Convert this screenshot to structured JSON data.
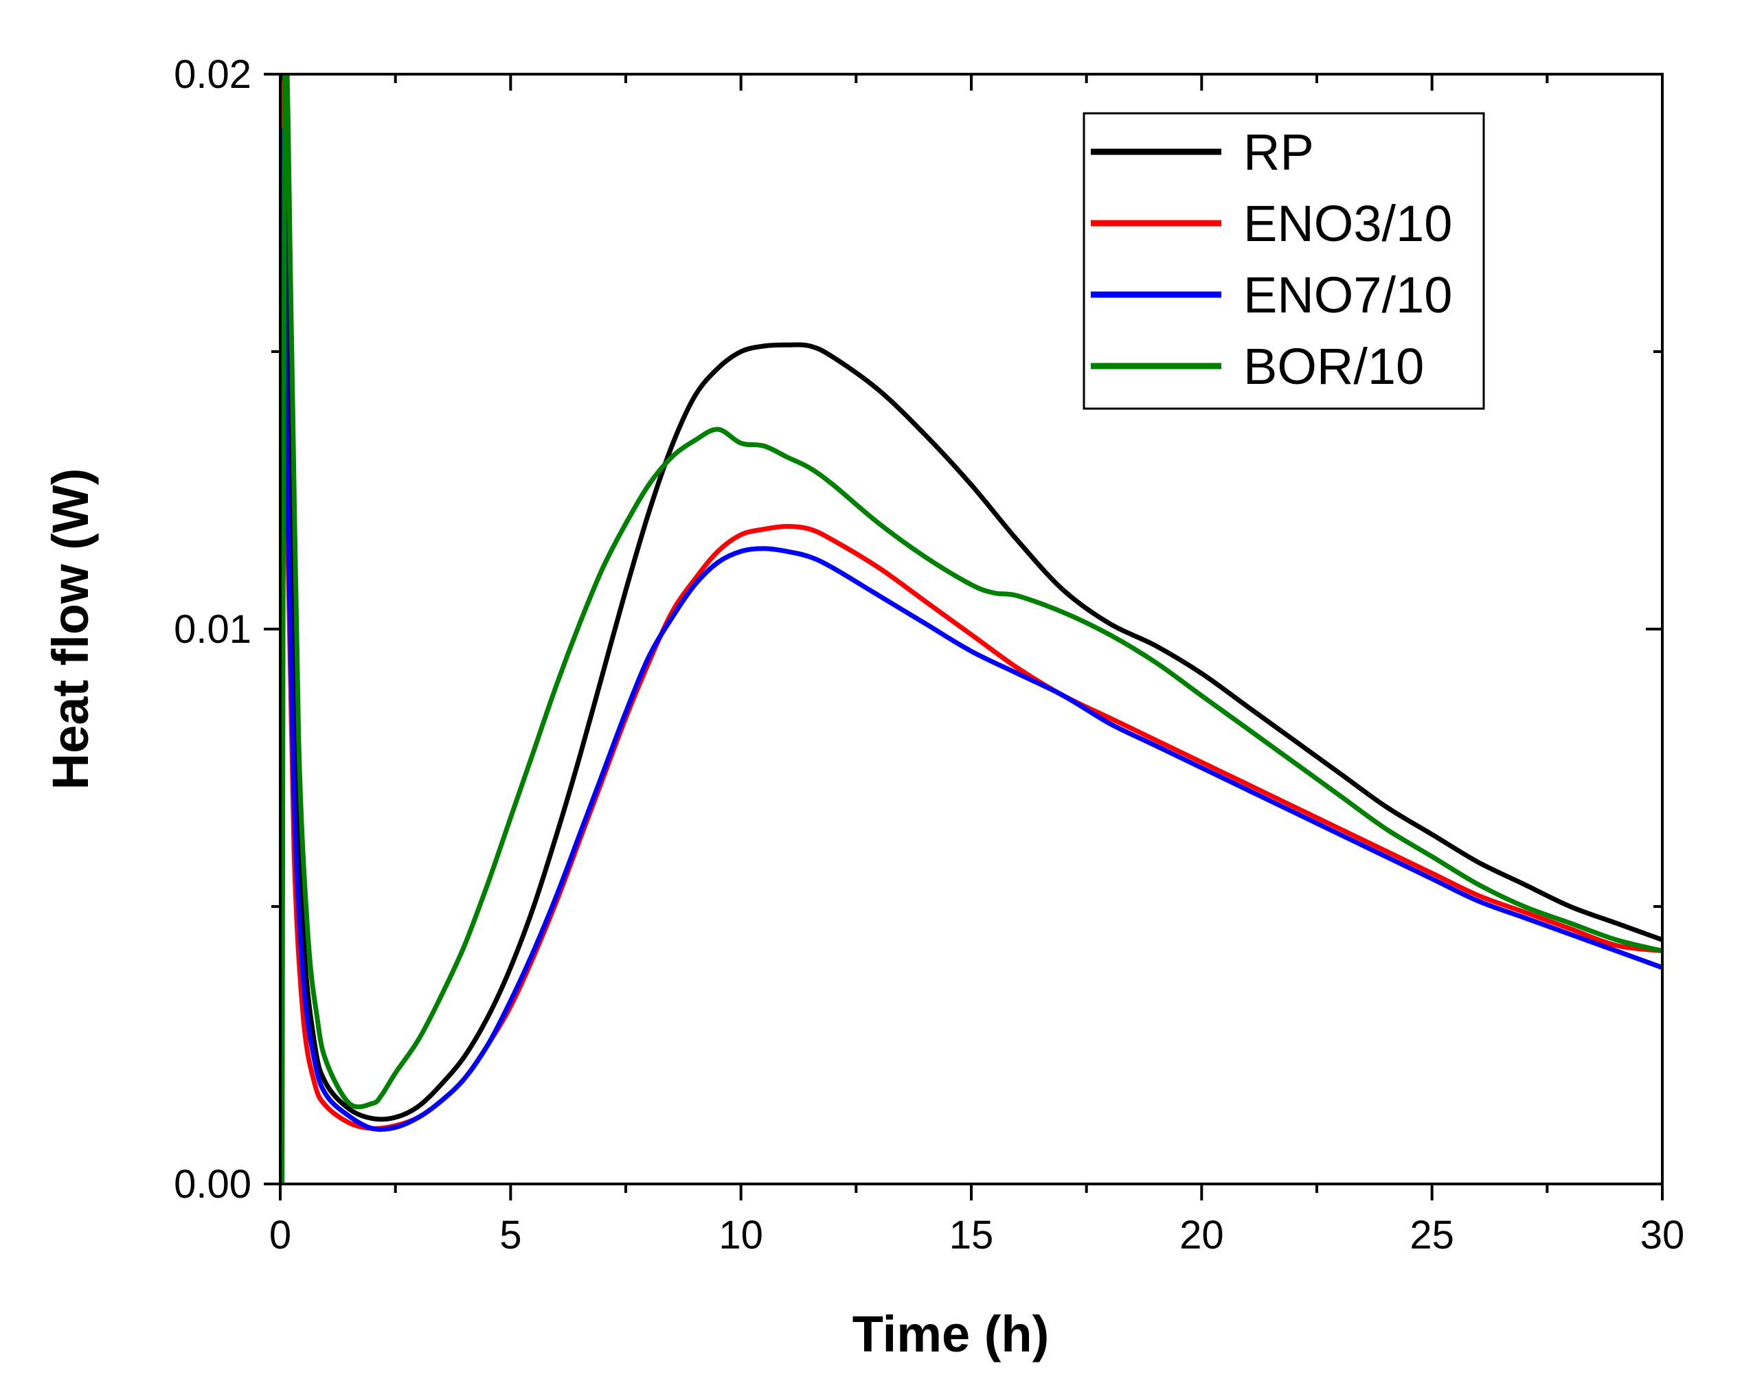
{
  "chart_data": {
    "type": "line",
    "title": "",
    "xlabel": "Time (h)",
    "ylabel": "Heat flow (W)",
    "xlim": [
      0,
      30
    ],
    "ylim": [
      0,
      0.02
    ],
    "x_ticks": [
      0,
      5,
      10,
      15,
      20,
      25,
      30
    ],
    "x_tick_labels": [
      "0",
      "5",
      "10",
      "15",
      "20",
      "25",
      "30"
    ],
    "y_ticks": [
      0,
      0.01,
      0.02
    ],
    "y_tick_labels": [
      "0.00",
      "0.01",
      "0.02"
    ],
    "x_minor_step": 2.5,
    "y_minor_step": 0.005,
    "grid": false,
    "legend_position": "top-right",
    "series": [
      {
        "name": "RP",
        "color": "#000000",
        "x": [
          0.05,
          0.15,
          0.3,
          0.5,
          0.75,
          1.0,
          1.5,
          2.0,
          2.5,
          3.0,
          3.5,
          4.0,
          4.5,
          5.0,
          5.5,
          6.0,
          6.5,
          7.0,
          7.5,
          8.0,
          8.5,
          9.0,
          9.5,
          10.0,
          10.5,
          11.0,
          11.5,
          12.0,
          13.0,
          14.0,
          15.0,
          16.0,
          17.0,
          18.0,
          19.0,
          20.0,
          21.0,
          22.0,
          23.0,
          24.0,
          25.0,
          26.0,
          27.0,
          28.0,
          29.0,
          30.0
        ],
        "values": [
          0.02,
          0.016,
          0.009,
          0.0045,
          0.0025,
          0.0018,
          0.00135,
          0.00118,
          0.0012,
          0.0014,
          0.0018,
          0.0023,
          0.003,
          0.0039,
          0.005,
          0.0063,
          0.0077,
          0.0092,
          0.0107,
          0.0121,
          0.0133,
          0.0142,
          0.0147,
          0.015,
          0.0151,
          0.01512,
          0.0151,
          0.0149,
          0.0143,
          0.0135,
          0.0126,
          0.0116,
          0.0107,
          0.0101,
          0.0097,
          0.0092,
          0.0086,
          0.008,
          0.0074,
          0.0068,
          0.0063,
          0.0058,
          0.0054,
          0.005,
          0.0047,
          0.0044
        ]
      },
      {
        "name": "ENO3/10",
        "color": "#ff0000",
        "x": [
          0.05,
          0.15,
          0.3,
          0.5,
          0.75,
          1.0,
          1.5,
          2.0,
          2.5,
          3.0,
          3.5,
          4.0,
          4.5,
          5.0,
          5.5,
          6.0,
          6.5,
          7.0,
          7.5,
          8.0,
          8.5,
          9.0,
          9.5,
          10.0,
          10.5,
          11.0,
          11.5,
          12.0,
          13.0,
          14.0,
          15.0,
          16.0,
          17.0,
          18.0,
          19.0,
          20.0,
          21.0,
          22.0,
          23.0,
          24.0,
          25.0,
          26.0,
          27.0,
          28.0,
          29.0,
          30.0
        ],
        "values": [
          0.0195,
          0.012,
          0.006,
          0.003,
          0.0018,
          0.0014,
          0.0011,
          0.001,
          0.00105,
          0.0012,
          0.0015,
          0.0019,
          0.0025,
          0.0032,
          0.0041,
          0.0051,
          0.0062,
          0.0073,
          0.0084,
          0.0094,
          0.0103,
          0.0109,
          0.0114,
          0.0117,
          0.0118,
          0.01185,
          0.0118,
          0.0116,
          0.0111,
          0.0105,
          0.0099,
          0.0093,
          0.0088,
          0.0084,
          0.008,
          0.0076,
          0.0072,
          0.0068,
          0.0064,
          0.006,
          0.0056,
          0.0052,
          0.0049,
          0.0046,
          0.0043,
          0.0042
        ]
      },
      {
        "name": "ENO7/10",
        "color": "#0000ff",
        "x": [
          0.05,
          0.15,
          0.3,
          0.5,
          0.75,
          1.0,
          1.5,
          2.0,
          2.5,
          3.0,
          3.5,
          4.0,
          4.5,
          5.0,
          5.5,
          6.0,
          6.5,
          7.0,
          7.5,
          8.0,
          8.5,
          9.0,
          9.5,
          10.0,
          10.5,
          11.0,
          11.5,
          12.0,
          13.0,
          14.0,
          15.0,
          16.0,
          17.0,
          18.0,
          19.0,
          20.0,
          21.0,
          22.0,
          23.0,
          24.0,
          25.0,
          26.0,
          27.0,
          28.0,
          29.0,
          30.0
        ],
        "values": [
          0.0185,
          0.013,
          0.007,
          0.0037,
          0.0022,
          0.0016,
          0.00122,
          0.001,
          0.00102,
          0.0012,
          0.0015,
          0.0019,
          0.0025,
          0.0033,
          0.0042,
          0.0052,
          0.0063,
          0.0074,
          0.0085,
          0.0095,
          0.0102,
          0.0108,
          0.0112,
          0.0114,
          0.01145,
          0.0114,
          0.0113,
          0.0111,
          0.0106,
          0.0101,
          0.0096,
          0.0092,
          0.0088,
          0.0083,
          0.0079,
          0.0075,
          0.0071,
          0.0067,
          0.0063,
          0.0059,
          0.0055,
          0.0051,
          0.0048,
          0.0045,
          0.0042,
          0.0039
        ]
      },
      {
        "name": "BOR/10",
        "color": "#008000",
        "x": [
          0.1,
          0.25,
          0.4,
          0.6,
          0.8,
          1.0,
          1.5,
          2.0,
          2.2,
          2.5,
          3.0,
          3.5,
          4.0,
          4.5,
          5.0,
          5.5,
          6.0,
          6.5,
          7.0,
          7.5,
          8.0,
          8.5,
          9.0,
          9.5,
          10.0,
          10.5,
          11.0,
          11.5,
          12.0,
          13.0,
          14.0,
          15.0,
          15.5,
          16.0,
          17.0,
          18.0,
          19.0,
          20.0,
          21.0,
          22.0,
          23.0,
          24.0,
          25.0,
          26.0,
          27.0,
          28.0,
          29.0,
          30.0
        ],
        "values": [
          0.02,
          0.015,
          0.008,
          0.0045,
          0.003,
          0.0022,
          0.00145,
          0.00145,
          0.0016,
          0.002,
          0.0026,
          0.0034,
          0.0043,
          0.0054,
          0.0066,
          0.0078,
          0.009,
          0.0101,
          0.0111,
          0.0119,
          0.0126,
          0.0131,
          0.0134,
          0.0136,
          0.01335,
          0.0133,
          0.0131,
          0.0129,
          0.0126,
          0.0119,
          0.0113,
          0.0108,
          0.01065,
          0.0106,
          0.0103,
          0.0099,
          0.0094,
          0.0088,
          0.0082,
          0.0076,
          0.007,
          0.0064,
          0.0059,
          0.0054,
          0.005,
          0.0047,
          0.0044,
          0.0042
        ]
      }
    ]
  }
}
